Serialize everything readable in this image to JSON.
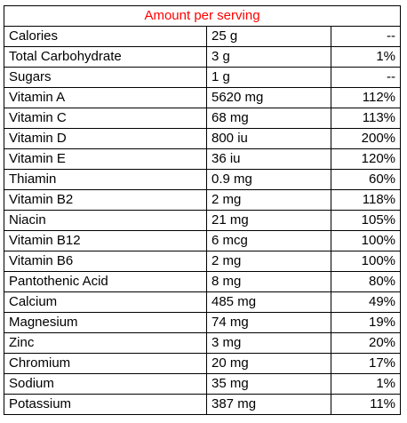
{
  "header": {
    "title": "Amount per serving",
    "title_color": "#ff0000"
  },
  "rows": [
    {
      "name": "Calories",
      "amount": "25 g",
      "dv": "--"
    },
    {
      "name": "Total Carbohydrate",
      "amount": "3 g",
      "dv": "1%"
    },
    {
      "name": "Sugars",
      "amount": "1 g",
      "dv": "--"
    },
    {
      "name": "Vitamin A",
      "amount": "5620 mg",
      "dv": "112%"
    },
    {
      "name": "Vitamin C",
      "amount": "68 mg",
      "dv": "113%"
    },
    {
      "name": "Vitamin D",
      "amount": "800 iu",
      "dv": "200%"
    },
    {
      "name": "Vitamin E",
      "amount": "36 iu",
      "dv": "120%"
    },
    {
      "name": "Thiamin",
      "amount": "0.9 mg",
      "dv": "60%"
    },
    {
      "name": "Vitamin B2",
      "amount": "2 mg",
      "dv": "118%"
    },
    {
      "name": "Niacin",
      "amount": "21 mg",
      "dv": "105%"
    },
    {
      "name": "Vitamin B12",
      "amount": "6 mcg",
      "dv": "100%"
    },
    {
      "name": "Vitamin B6",
      "amount": "2 mg",
      "dv": "100%"
    },
    {
      "name": "Pantothenic Acid",
      "amount": "8 mg",
      "dv": "80%"
    },
    {
      "name": "Calcium",
      "amount": "485 mg",
      "dv": "49%"
    },
    {
      "name": "Magnesium",
      "amount": "74 mg",
      "dv": "19%"
    },
    {
      "name": "Zinc",
      "amount": "3 mg",
      "dv": "20%"
    },
    {
      "name": "Chromium",
      "amount": "20 mg",
      "dv": "17%"
    },
    {
      "name": "Sodium",
      "amount": "35 mg",
      "dv": "1%"
    },
    {
      "name": "Potassium",
      "amount": "387 mg",
      "dv": "11%"
    }
  ]
}
